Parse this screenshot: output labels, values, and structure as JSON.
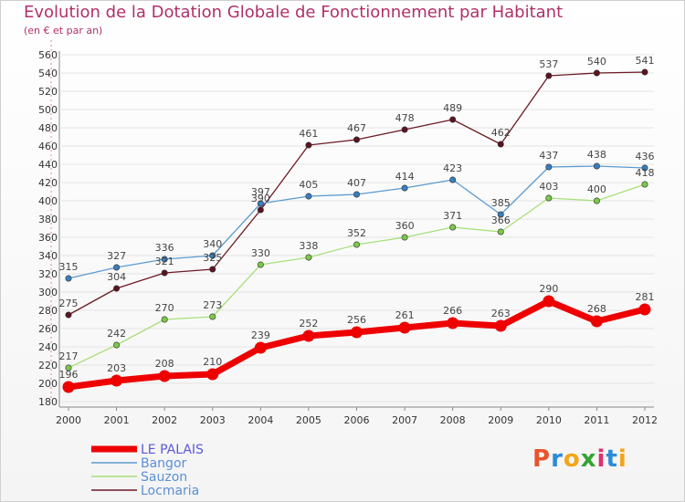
{
  "header": {
    "title": "Evolution de la Dotation Globale de Fonctionnement par Habitant",
    "subtitle": "(en € et par an)"
  },
  "logo": {
    "text": "Proxiti",
    "letter_colors": [
      "#e8542c",
      "#2e8bd8",
      "#f2a51a",
      "#33a532",
      "#e0306e",
      "#2e8bd8",
      "#f2a51a"
    ]
  },
  "chart_data": {
    "type": "line",
    "title": "Evolution de la Dotation Globale de Fonctionnement par Habitant",
    "subtitle": "(en € et par an)",
    "x": [
      "2000",
      "2001",
      "2002",
      "2003",
      "2004",
      "2005",
      "2006",
      "2007",
      "2008",
      "2009",
      "2010",
      "2011",
      "2012"
    ],
    "ylim": [
      180,
      560
    ],
    "yticks": [
      180,
      200,
      220,
      240,
      260,
      280,
      300,
      320,
      340,
      360,
      380,
      400,
      420,
      440,
      460,
      480,
      500,
      520,
      540,
      560
    ],
    "grid": "horizontal",
    "legend_position": "bottom-left",
    "series": [
      {
        "name": "Locmaria",
        "color": "#6b1a24",
        "marker_color": "#5a1420",
        "values": [
          275,
          304,
          321,
          325,
          390,
          461,
          467,
          478,
          489,
          462,
          537,
          540,
          541
        ]
      },
      {
        "name": "Bangor",
        "color": "#5b9bd0",
        "marker_color": "#3a7cc0",
        "values": [
          315,
          327,
          336,
          340,
          397,
          405,
          407,
          414,
          423,
          385,
          437,
          438,
          436
        ]
      },
      {
        "name": "Sauzon",
        "color": "#a8e07a",
        "marker_color": "#7cc848",
        "values": [
          217,
          242,
          270,
          273,
          330,
          338,
          352,
          360,
          371,
          366,
          403,
          400,
          418
        ]
      },
      {
        "name": "LE PALAIS",
        "color": "#ee0000",
        "marker_color": "#ee0000",
        "values": [
          196,
          203,
          208,
          210,
          239,
          252,
          256,
          261,
          266,
          263,
          290,
          268,
          281
        ]
      }
    ],
    "legend": [
      {
        "name": "LE PALAIS",
        "color": "#ee0000"
      },
      {
        "name": "Bangor",
        "color": "#5b9bd0"
      },
      {
        "name": "Sauzon",
        "color": "#a8e07a"
      },
      {
        "name": "Locmaria",
        "color": "#6b1a24"
      }
    ]
  }
}
